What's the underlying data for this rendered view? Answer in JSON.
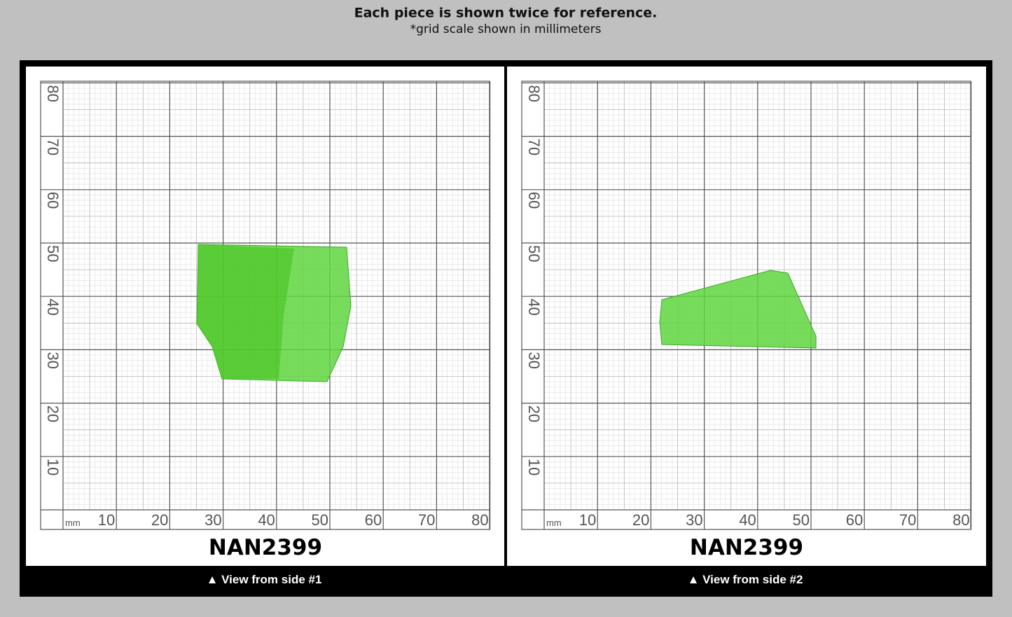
{
  "header": {
    "title": "Each piece is shown twice for reference.",
    "subtitle": "*grid scale shown in millimeters"
  },
  "panels": [
    {
      "x_labels": [
        10,
        20,
        30,
        40,
        50,
        60,
        70,
        80
      ],
      "y_labels": [
        10,
        20,
        30,
        40,
        50,
        60,
        70,
        80
      ],
      "unit": "mm",
      "code": "NAN2399",
      "caption": "▲ View from side #1"
    },
    {
      "x_labels": [
        10,
        20,
        30,
        40,
        50,
        60,
        70,
        80
      ],
      "y_labels": [
        10,
        20,
        30,
        40,
        50,
        60,
        70,
        80
      ],
      "unit": "mm",
      "code": "NAN2399",
      "caption": "▲ View from side #2"
    }
  ]
}
